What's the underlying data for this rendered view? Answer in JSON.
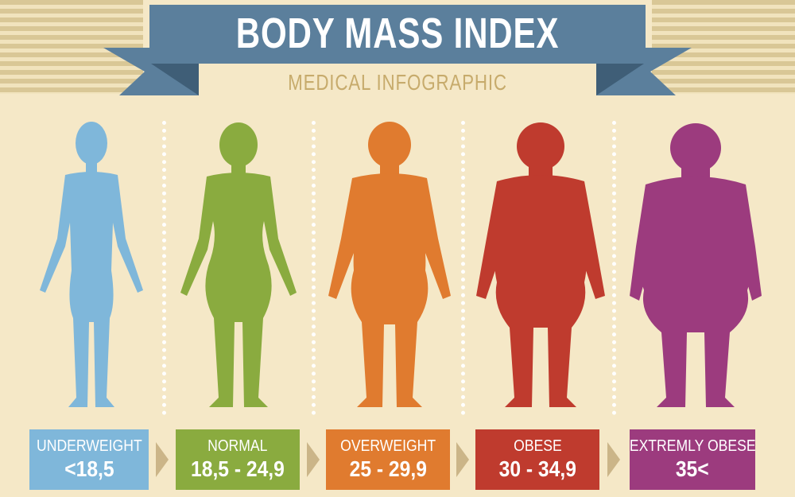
{
  "header": {
    "title": "BODY MASS INDEX",
    "subtitle": "MEDICAL INFOGRAPHIC",
    "banner_color": "#5b7f9c",
    "banner_dark": "#3f5e77"
  },
  "categories": [
    {
      "label": "UNDERWEIGHT",
      "range": "<18,5",
      "color": "#7fb7da",
      "figure": "thin-woman-silhouette"
    },
    {
      "label": "NORMAL",
      "range": "18,5 - 24,9",
      "color": "#8aab3f",
      "figure": "normal-woman-silhouette"
    },
    {
      "label": "OVERWEIGHT",
      "range": "25 - 29,9",
      "color": "#e07b2f",
      "figure": "overweight-woman-silhouette"
    },
    {
      "label": "OBESE",
      "range": "30 - 34,9",
      "color": "#bf3b2e",
      "figure": "obese-woman-silhouette"
    },
    {
      "label": "EXTREMLY OBESE",
      "range": "35<",
      "color": "#9c3b7e",
      "figure": "extremely-obese-woman-silhouette"
    }
  ],
  "colors": {
    "background": "#f5e8c7",
    "arrow": "#cbb588"
  }
}
